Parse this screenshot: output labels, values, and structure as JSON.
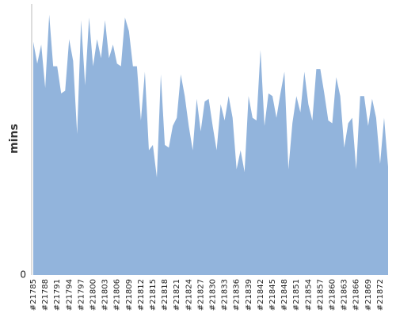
{
  "chart_data": {
    "type": "area",
    "y_label": "mins",
    "color": "#92b4dc",
    "categories": [
      "#21785",
      null,
      null,
      "#21788",
      null,
      null,
      "#21791",
      null,
      null,
      "#21794",
      null,
      null,
      "#21797",
      null,
      null,
      "#21800",
      null,
      null,
      "#21803",
      null,
      null,
      "#21806",
      null,
      null,
      "#21809",
      null,
      null,
      "#21812",
      null,
      null,
      "#21815",
      null,
      null,
      "#21818",
      null,
      null,
      "#21821",
      null,
      null,
      "#21824",
      null,
      null,
      "#21827",
      null,
      null,
      "#21830",
      null,
      null,
      "#21833",
      null,
      null,
      "#21836",
      null,
      null,
      "#21839",
      null,
      null,
      "#21842",
      null,
      null,
      "#21845",
      null,
      null,
      "#21848",
      null,
      null,
      "#21851",
      null,
      null,
      "#21854",
      null,
      null,
      "#21857",
      null,
      null,
      "#21860",
      null,
      null,
      "#21863",
      null,
      null,
      "#21866",
      null,
      null,
      "#21869",
      null,
      null,
      "#21872",
      null,
      null
    ],
    "values": [
      86,
      78,
      85,
      69,
      96,
      77,
      77,
      67,
      68,
      87,
      79,
      52,
      94,
      70,
      95,
      77,
      87,
      80,
      94,
      80,
      85,
      78,
      77,
      95,
      90,
      77,
      77,
      57,
      75,
      46,
      48,
      36,
      74,
      48,
      47,
      55,
      58,
      74,
      66,
      55,
      46,
      65,
      53,
      64,
      65,
      55,
      46,
      63,
      57,
      66,
      58,
      39,
      46,
      38,
      66,
      58,
      57,
      83,
      55,
      67,
      66,
      58,
      67,
      75,
      39,
      56,
      66,
      60,
      75,
      63,
      57,
      76,
      76,
      67,
      57,
      56,
      73,
      66,
      47,
      56,
      58,
      39,
      66,
      66,
      55,
      65,
      58,
      41,
      58,
      40
    ],
    "ylim": [
      0,
      100
    ],
    "yticks": [
      0
    ]
  }
}
